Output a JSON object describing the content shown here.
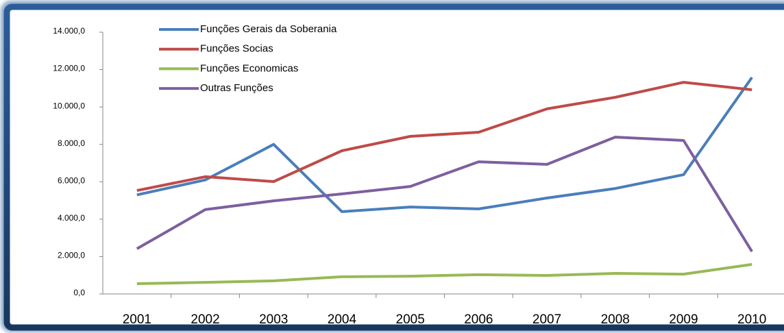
{
  "chart_data": {
    "type": "line",
    "categories": [
      "2001",
      "2002",
      "2003",
      "2004",
      "2005",
      "2006",
      "2007",
      "2008",
      "2009",
      "2010"
    ],
    "series": [
      {
        "name": "Funções Gerais da Soberania",
        "color": "#4a7ebb",
        "values": [
          5300,
          6100,
          8000,
          4400,
          4650,
          4550,
          5130,
          5640,
          6380,
          11580
        ]
      },
      {
        "name": "Funções Socias",
        "color": "#be4b48",
        "values": [
          5530,
          6270,
          6010,
          7660,
          8430,
          8650,
          9900,
          10520,
          11320,
          10920
        ]
      },
      {
        "name": "Funções Economicas",
        "color": "#98b954",
        "values": [
          550,
          620,
          700,
          920,
          950,
          1030,
          990,
          1100,
          1060,
          1580
        ]
      },
      {
        "name": "Outras Funções",
        "color": "#7d5fa0",
        "values": [
          2420,
          4510,
          4980,
          5350,
          5750,
          7070,
          6930,
          8390,
          8210,
          2270
        ]
      }
    ],
    "ylim": [
      0,
      14000
    ],
    "yticks": [
      {
        "value": 0,
        "label": "0,0"
      },
      {
        "value": 2000,
        "label": "2.000,0"
      },
      {
        "value": 4000,
        "label": "4.000,0"
      },
      {
        "value": 6000,
        "label": "6.000,0"
      },
      {
        "value": 8000,
        "label": "8.000,0"
      },
      {
        "value": 10000,
        "label": "10.000,0"
      },
      {
        "value": 12000,
        "label": "12.000,0"
      },
      {
        "value": 14000,
        "label": "14.000,0"
      }
    ],
    "grid": false,
    "legend": "top-left"
  }
}
